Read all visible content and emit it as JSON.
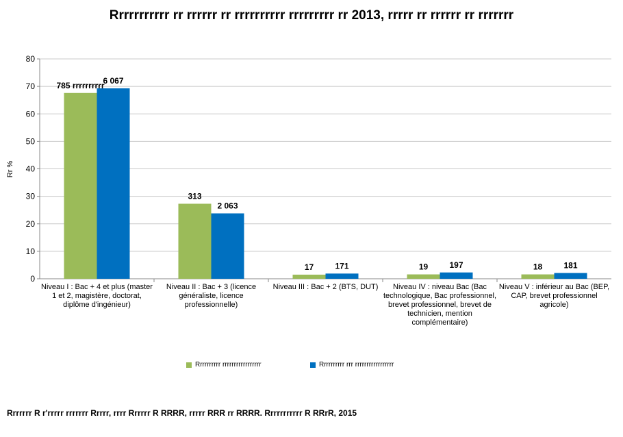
{
  "title": "Rrrrrrrrrrr rr rrrrrr rr rrrrrrrrrr rrrrrrrrr rr 2013, rrrrr rr rrrrrr rr rrrrrrr",
  "source": "Rrrrrrr R r'rrrrr rrrrrrr Rrrrr, rrrr Rrrrrr R RRRR, rrrrr RRR rr RRRR. Rrrrrrrrrrr R RRrR, 2015",
  "colors": {
    "series1": "#9BBB59",
    "series2": "#0070C0"
  },
  "chart_data": {
    "type": "bar",
    "ylabel": "Rr %",
    "ylim": [
      0,
      80
    ],
    "yticks": [
      0,
      10,
      20,
      30,
      40,
      50,
      60,
      70,
      80
    ],
    "grid": true,
    "legend_position": "bottom",
    "categories": [
      "Niveau I : Bac + 4 et plus (master 1 et 2, magistère, doctorat, diplôme d'ingénieur)",
      "Niveau II : Bac + 3 (licence généraliste, licence professionnelle)",
      "Niveau III : Bac + 2 (BTS, DUT)",
      "Niveau IV : niveau Bac (Bac technologique, Bac professionnel, brevet professionnel, brevet de technicien, mention complémentaire)",
      "Niveau V : inférieur au Bac (BEP, CAP, brevet professionnel agricole)"
    ],
    "series": [
      {
        "name": "Rrrrrrrrrr rrrrrrrrrrrrrrrrr",
        "values": [
          67.6,
          27.3,
          1.5,
          1.6,
          1.6
        ],
        "labels": [
          "785 rrrrrrrrrr",
          "313",
          "17",
          "19",
          "18"
        ]
      },
      {
        "name": "Rrrrrrrrrr rrr rrrrrrrrrrrrrrrrr",
        "values": [
          69.3,
          23.8,
          1.9,
          2.3,
          2.1
        ],
        "labels": [
          "6 067",
          "2 063",
          "171",
          "197",
          "181"
        ]
      }
    ]
  }
}
